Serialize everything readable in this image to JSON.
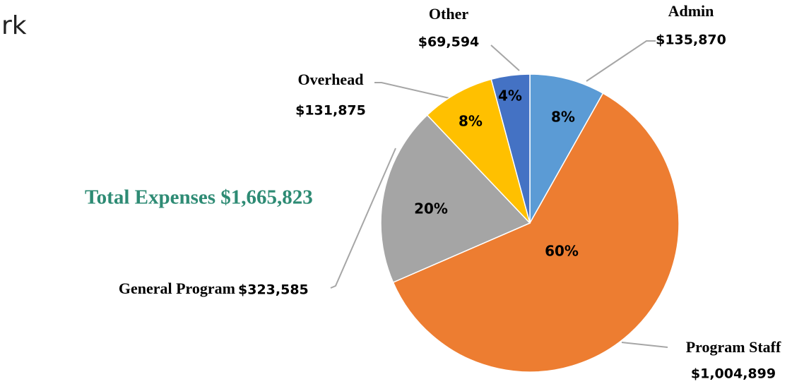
{
  "heading_fragment": "rk",
  "total_label": "Total Expenses $1,665,823",
  "chart_data": {
    "type": "pie",
    "categories": [
      "Admin",
      "Program Staff",
      "General Program",
      "Overhead",
      "Other"
    ],
    "values": [
      135870,
      1004899,
      323585,
      131875,
      69594
    ],
    "value_labels": [
      "$135,870",
      "$1,004,899",
      "$323,585",
      "$131,875",
      "$69,594"
    ],
    "percent_labels": [
      "8%",
      "60%",
      "20%",
      "8%",
      "4%"
    ],
    "colors": [
      "#5b9bd5",
      "#ed7d31",
      "#a5a5a5",
      "#ffc000",
      "#4472c4"
    ]
  }
}
